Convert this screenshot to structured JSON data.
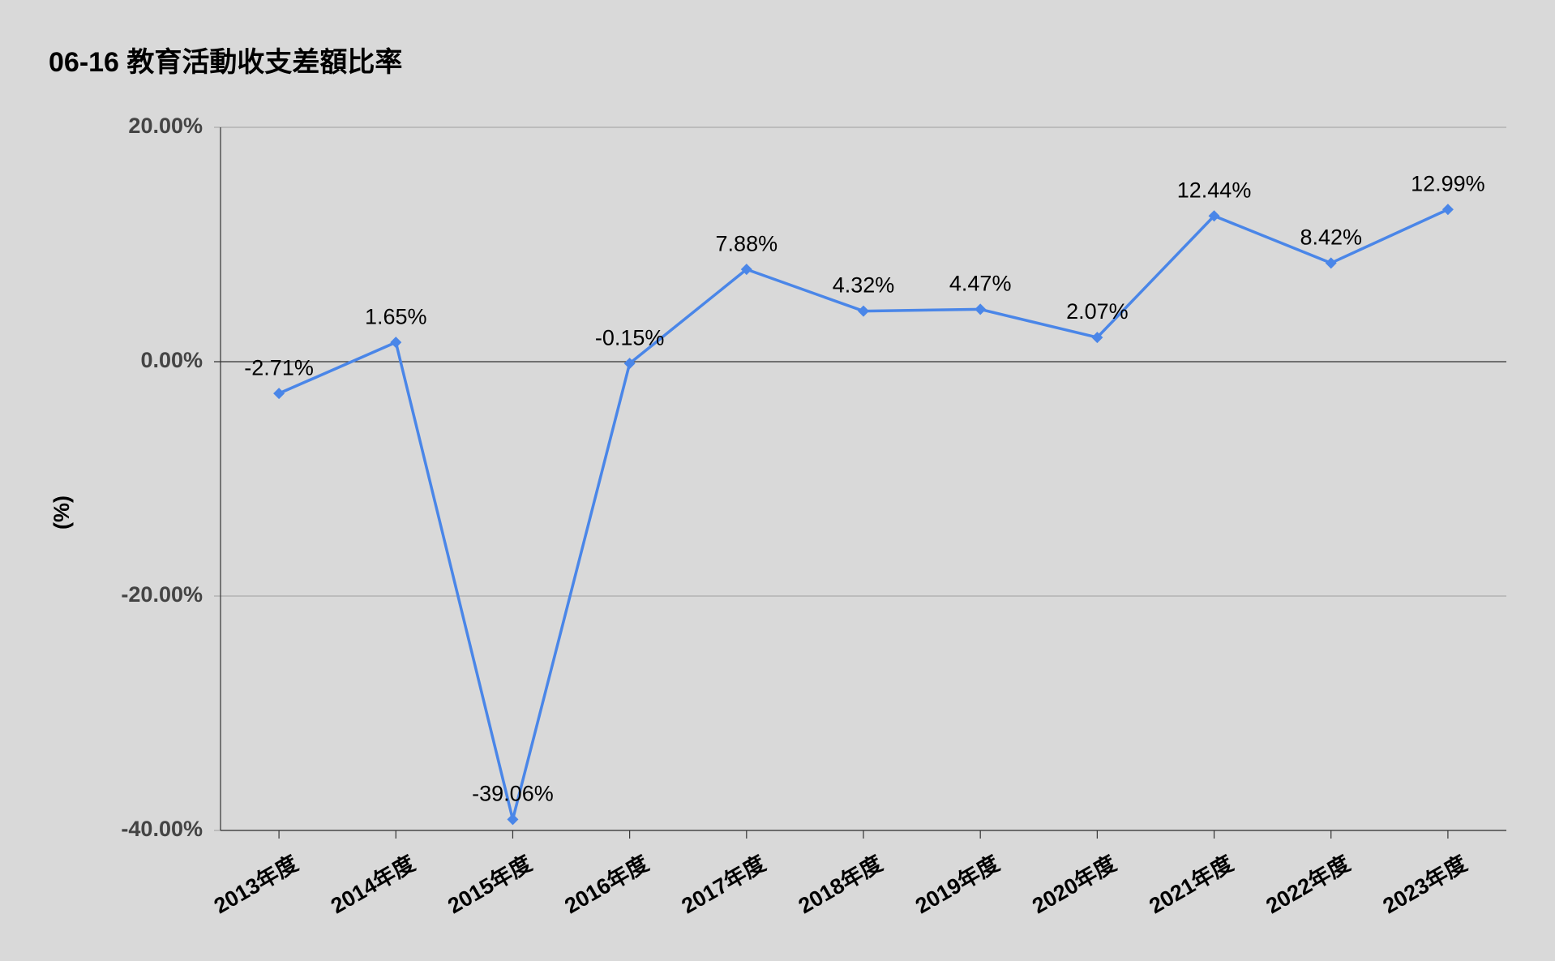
{
  "chart_data": {
    "type": "line",
    "title": "06-16 教育活動收支差額比率",
    "y_label": "(%)",
    "categories": [
      "2013年度",
      "2014年度",
      "2015年度",
      "2016年度",
      "2017年度",
      "2018年度",
      "2019年度",
      "2020年度",
      "2021年度",
      "2022年度",
      "2023年度"
    ],
    "series": [
      {
        "name": "教育活動收支差額比率",
        "color": "#4a86e8",
        "values": [
          -2.71,
          1.65,
          -39.06,
          -0.15,
          7.88,
          4.32,
          4.47,
          2.07,
          12.44,
          8.42,
          12.99
        ],
        "value_labels": [
          "-2.71%",
          "1.65%",
          "-39.06%",
          "-0.15%",
          "7.88%",
          "4.32%",
          "4.47%",
          "2.07%",
          "12.44%",
          "8.42%",
          "12.99%"
        ]
      }
    ],
    "ylim": [
      -40,
      20
    ],
    "yticks": [
      {
        "value": -40,
        "label": "-40.00%"
      },
      {
        "value": -20,
        "label": "-20.00%"
      },
      {
        "value": 0,
        "label": "0.00%"
      },
      {
        "value": 20,
        "label": "20.00%"
      }
    ],
    "grid": true
  }
}
